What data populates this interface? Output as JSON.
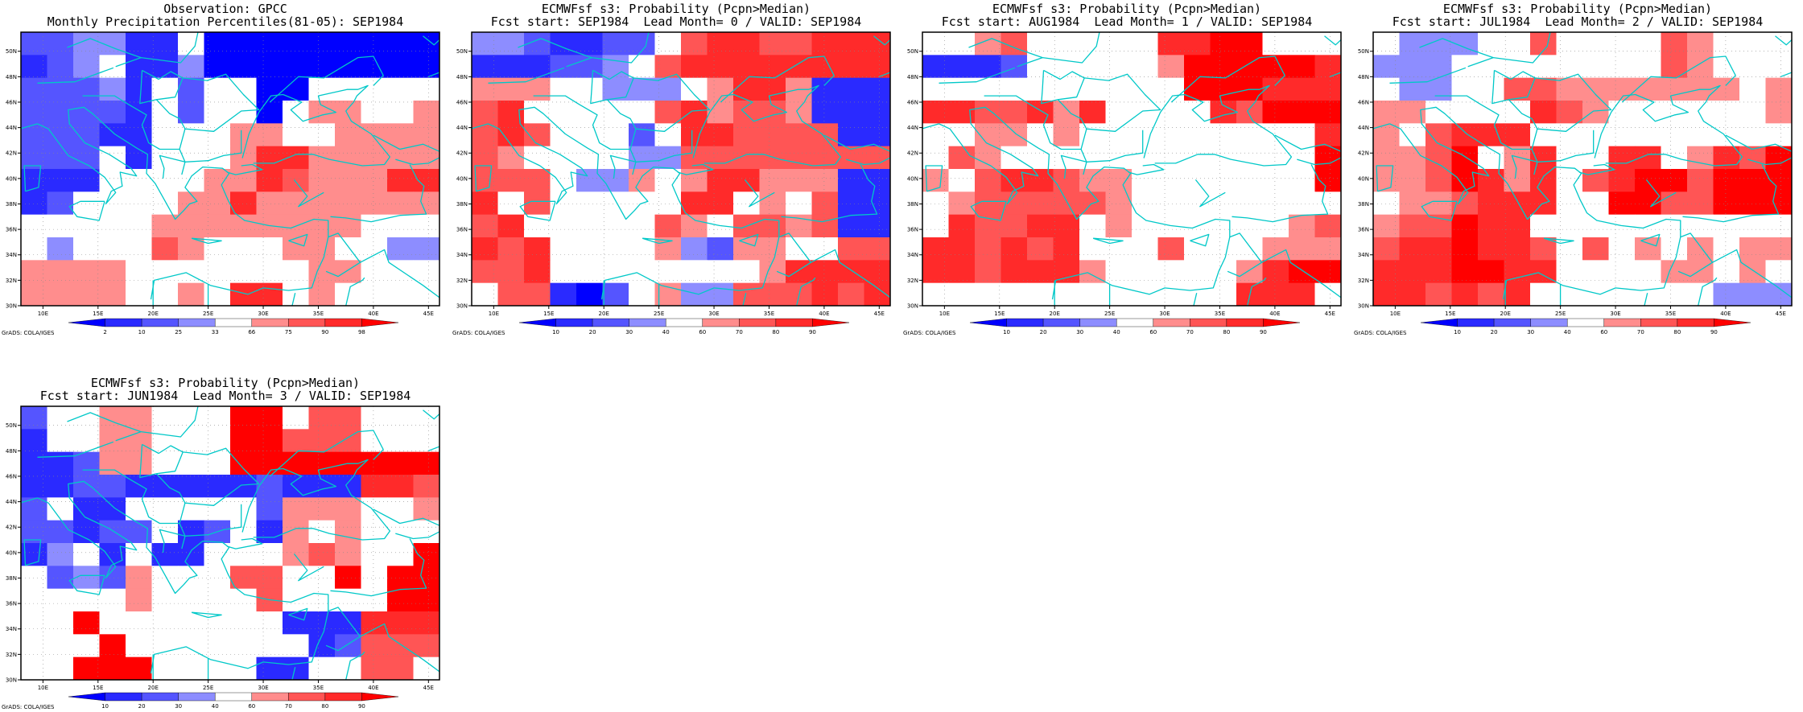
{
  "chart_data": [
    {
      "type": "heatmap",
      "title": [
        "Observation: GPCC",
        "Monthly Precipitation Percentiles(81-05): SEP1984"
      ],
      "legend": {
        "kind": "percentile",
        "labels": [
          "2",
          "10",
          "25",
          "33",
          "66",
          "75",
          "90",
          "98"
        ],
        "colors": [
          "#0000ff",
          "#2a2aff",
          "#5555ff",
          "#8d8dff",
          "#ffffff",
          "#ff8d8d",
          "#ff5555",
          "#ff2a2a",
          "#ff0000"
        ]
      },
      "grid": [
        [
          2,
          2,
          3,
          3,
          1,
          1,
          4,
          0,
          0,
          0,
          0,
          0,
          0,
          0,
          0,
          0
        ],
        [
          1,
          2,
          3,
          4,
          1,
          1,
          3,
          0,
          0,
          0,
          0,
          0,
          0,
          0,
          0,
          0
        ],
        [
          2,
          2,
          2,
          3,
          1,
          4,
          2,
          4,
          4,
          0,
          0,
          4,
          4,
          4,
          4,
          4
        ],
        [
          2,
          2,
          2,
          2,
          1,
          4,
          2,
          4,
          4,
          0,
          4,
          5,
          5,
          4,
          4,
          5
        ],
        [
          2,
          2,
          2,
          1,
          1,
          4,
          4,
          4,
          5,
          5,
          4,
          4,
          5,
          5,
          5,
          5
        ],
        [
          2,
          2,
          2,
          4,
          1,
          4,
          4,
          4,
          5,
          7,
          7,
          5,
          5,
          5,
          5,
          5
        ],
        [
          1,
          1,
          1,
          4,
          4,
          4,
          4,
          5,
          5,
          7,
          6,
          5,
          5,
          5,
          7,
          7
        ],
        [
          1,
          2,
          4,
          4,
          4,
          4,
          5,
          5,
          7,
          5,
          5,
          5,
          5,
          5,
          5,
          5
        ],
        [
          4,
          4,
          4,
          4,
          4,
          5,
          5,
          5,
          5,
          5,
          5,
          5,
          5,
          4,
          4,
          4
        ],
        [
          4,
          3,
          4,
          4,
          4,
          6,
          5,
          4,
          4,
          4,
          5,
          5,
          4,
          4,
          3,
          3
        ],
        [
          5,
          5,
          5,
          5,
          4,
          4,
          4,
          4,
          4,
          4,
          4,
          5,
          5,
          4,
          4,
          4
        ],
        [
          5,
          5,
          5,
          5,
          4,
          4,
          5,
          4,
          7,
          7,
          4,
          5,
          4,
          4,
          4,
          4
        ]
      ]
    },
    {
      "type": "heatmap",
      "title": [
        "ECMWFsf s3: Probability (Pcpn>Median)",
        "Fcst start: SEP1984  Lead Month= 0 / VALID: SEP1984"
      ],
      "legend": {
        "kind": "probability",
        "labels": [
          "10",
          "20",
          "30",
          "40",
          "60",
          "70",
          "80",
          "90"
        ],
        "colors": [
          "#0000ff",
          "#2a2aff",
          "#5555ff",
          "#8d8dff",
          "#ffffff",
          "#ff8d8d",
          "#ff5555",
          "#ff2a2a",
          "#ff0000"
        ]
      },
      "grid": [
        [
          3,
          3,
          2,
          1,
          1,
          2,
          2,
          4,
          6,
          7,
          7,
          6,
          6,
          7,
          7,
          7
        ],
        [
          1,
          1,
          1,
          2,
          2,
          3,
          4,
          6,
          7,
          7,
          7,
          7,
          7,
          7,
          7,
          7
        ],
        [
          5,
          5,
          5,
          4,
          4,
          3,
          3,
          3,
          4,
          5,
          7,
          7,
          5,
          1,
          1,
          1
        ],
        [
          6,
          7,
          4,
          4,
          4,
          4,
          4,
          6,
          7,
          5,
          6,
          6,
          5,
          1,
          1,
          1
        ],
        [
          6,
          7,
          6,
          4,
          4,
          4,
          2,
          4,
          7,
          7,
          6,
          6,
          6,
          6,
          1,
          1
        ],
        [
          6,
          5,
          4,
          4,
          4,
          4,
          3,
          3,
          6,
          6,
          6,
          6,
          6,
          6,
          6,
          6
        ],
        [
          6,
          6,
          6,
          4,
          3,
          3,
          5,
          4,
          5,
          7,
          7,
          5,
          5,
          5,
          1,
          1
        ],
        [
          7,
          4,
          6,
          4,
          4,
          4,
          4,
          4,
          7,
          7,
          4,
          5,
          4,
          6,
          1,
          1
        ],
        [
          6,
          7,
          4,
          4,
          4,
          4,
          4,
          6,
          5,
          4,
          6,
          6,
          5,
          6,
          1,
          1
        ],
        [
          7,
          6,
          7,
          4,
          4,
          4,
          4,
          5,
          3,
          2,
          5,
          5,
          4,
          4,
          6,
          6
        ],
        [
          6,
          6,
          7,
          4,
          4,
          4,
          4,
          4,
          4,
          4,
          4,
          5,
          7,
          7,
          7,
          7
        ],
        [
          4,
          6,
          6,
          1,
          0,
          2,
          4,
          5,
          3,
          3,
          6,
          6,
          6,
          7,
          6,
          7
        ]
      ]
    },
    {
      "type": "heatmap",
      "title": [
        "ECMWFsf s3: Probability (Pcpn>Median)",
        "Fcst start: AUG1984  Lead Month= 1 / VALID: SEP1984"
      ],
      "legend": {
        "kind": "probability",
        "labels": [
          "10",
          "20",
          "30",
          "40",
          "60",
          "70",
          "80",
          "90"
        ],
        "colors": [
          "#0000ff",
          "#2a2aff",
          "#5555ff",
          "#8d8dff",
          "#ffffff",
          "#ff8d8d",
          "#ff5555",
          "#ff2a2a",
          "#ff0000"
        ]
      },
      "grid": [
        [
          4,
          4,
          5,
          6,
          4,
          4,
          4,
          4,
          4,
          7,
          7,
          8,
          8,
          4,
          4,
          4
        ],
        [
          1,
          1,
          1,
          2,
          4,
          4,
          4,
          4,
          4,
          5,
          8,
          8,
          8,
          8,
          8,
          7
        ],
        [
          4,
          4,
          4,
          4,
          4,
          4,
          4,
          4,
          4,
          4,
          8,
          8,
          8,
          7,
          7,
          7
        ],
        [
          7,
          7,
          6,
          6,
          7,
          5,
          7,
          4,
          4,
          4,
          4,
          7,
          6,
          8,
          8,
          8
        ],
        [
          4,
          4,
          5,
          5,
          4,
          5,
          4,
          4,
          4,
          4,
          4,
          4,
          4,
          4,
          4,
          7
        ],
        [
          4,
          6,
          5,
          4,
          4,
          4,
          4,
          4,
          4,
          4,
          4,
          4,
          4,
          4,
          4,
          8
        ],
        [
          5,
          4,
          6,
          7,
          7,
          6,
          5,
          5,
          4,
          4,
          4,
          4,
          4,
          4,
          4,
          8
        ],
        [
          4,
          5,
          6,
          6,
          6,
          6,
          6,
          5,
          4,
          4,
          4,
          4,
          4,
          4,
          4,
          4
        ],
        [
          4,
          7,
          6,
          6,
          7,
          7,
          4,
          5,
          4,
          4,
          4,
          4,
          4,
          4,
          5,
          6
        ],
        [
          7,
          7,
          6,
          7,
          6,
          7,
          4,
          4,
          4,
          6,
          4,
          4,
          4,
          5,
          5,
          5
        ],
        [
          7,
          7,
          6,
          7,
          7,
          7,
          5,
          4,
          4,
          4,
          4,
          4,
          5,
          7,
          8,
          8
        ],
        [
          4,
          4,
          4,
          4,
          4,
          4,
          4,
          4,
          4,
          4,
          4,
          4,
          7,
          7,
          7,
          4
        ]
      ]
    },
    {
      "type": "heatmap",
      "title": [
        "ECMWFsf s3: Probability (Pcpn>Median)",
        "Fcst start: JUL1984  Lead Month= 2 / VALID: SEP1984"
      ],
      "legend": {
        "kind": "probability",
        "labels": [
          "10",
          "20",
          "30",
          "40",
          "60",
          "70",
          "80",
          "90"
        ],
        "colors": [
          "#0000ff",
          "#2a2aff",
          "#5555ff",
          "#8d8dff",
          "#ffffff",
          "#ff8d8d",
          "#ff5555",
          "#ff2a2a",
          "#ff0000"
        ]
      },
      "grid": [
        [
          4,
          3,
          3,
          3,
          4,
          4,
          6,
          4,
          4,
          4,
          4,
          6,
          5,
          4,
          4,
          4
        ],
        [
          3,
          3,
          3,
          4,
          4,
          4,
          4,
          4,
          4,
          4,
          4,
          6,
          5,
          4,
          4,
          4
        ],
        [
          4,
          3,
          3,
          4,
          4,
          6,
          6,
          5,
          5,
          5,
          5,
          5,
          5,
          5,
          4,
          5
        ],
        [
          5,
          5,
          4,
          4,
          4,
          4,
          7,
          6,
          5,
          4,
          4,
          4,
          4,
          4,
          4,
          5
        ],
        [
          5,
          4,
          6,
          7,
          7,
          7,
          4,
          4,
          4,
          4,
          4,
          4,
          4,
          4,
          4,
          4
        ],
        [
          5,
          5,
          6,
          8,
          4,
          5,
          7,
          4,
          4,
          7,
          7,
          4,
          5,
          7,
          6,
          8
        ],
        [
          5,
          5,
          6,
          8,
          7,
          5,
          7,
          4,
          6,
          7,
          8,
          8,
          6,
          8,
          8,
          8
        ],
        [
          4,
          5,
          5,
          6,
          7,
          7,
          7,
          4,
          4,
          8,
          8,
          6,
          6,
          8,
          8,
          8
        ],
        [
          5,
          6,
          6,
          8,
          7,
          7,
          4,
          4,
          4,
          4,
          4,
          4,
          4,
          4,
          4,
          4
        ],
        [
          6,
          7,
          7,
          8,
          7,
          7,
          6,
          4,
          6,
          4,
          5,
          4,
          5,
          4,
          5,
          5
        ],
        [
          7,
          7,
          7,
          8,
          8,
          7,
          7,
          4,
          4,
          4,
          4,
          5,
          5,
          4,
          5,
          4
        ],
        [
          7,
          7,
          6,
          7,
          6,
          7,
          4,
          4,
          4,
          4,
          4,
          4,
          4,
          3,
          3,
          3
        ]
      ]
    },
    {
      "type": "heatmap",
      "title": [
        "ECMWFsf s3: Probability (Pcpn>Median)",
        "Fcst start: JUN1984  Lead Month= 3 / VALID: SEP1984"
      ],
      "legend": {
        "kind": "probability",
        "labels": [
          "10",
          "20",
          "30",
          "40",
          "60",
          "70",
          "80",
          "90"
        ],
        "colors": [
          "#0000ff",
          "#2a2aff",
          "#5555ff",
          "#8d8dff",
          "#ffffff",
          "#ff8d8d",
          "#ff5555",
          "#ff2a2a",
          "#ff0000"
        ]
      },
      "grid": [
        [
          2,
          4,
          4,
          5,
          5,
          4,
          4,
          4,
          8,
          8,
          4,
          6,
          6,
          4,
          4,
          4
        ],
        [
          1,
          4,
          4,
          5,
          5,
          4,
          4,
          4,
          8,
          8,
          6,
          6,
          6,
          4,
          4,
          4
        ],
        [
          1,
          1,
          2,
          5,
          5,
          4,
          4,
          4,
          8,
          8,
          8,
          8,
          8,
          8,
          8,
          8
        ],
        [
          1,
          1,
          2,
          2,
          1,
          1,
          1,
          1,
          1,
          2,
          1,
          1,
          1,
          7,
          7,
          6
        ],
        [
          2,
          4,
          1,
          1,
          4,
          4,
          4,
          4,
          4,
          2,
          5,
          5,
          5,
          4,
          4,
          5
        ],
        [
          2,
          2,
          1,
          2,
          2,
          4,
          1,
          2,
          4,
          1,
          5,
          4,
          5,
          4,
          4,
          4
        ],
        [
          1,
          3,
          4,
          1,
          4,
          1,
          1,
          4,
          4,
          4,
          5,
          6,
          5,
          4,
          4,
          8
        ],
        [
          4,
          2,
          3,
          2,
          5,
          4,
          4,
          4,
          6,
          6,
          4,
          4,
          8,
          4,
          8,
          8
        ],
        [
          4,
          4,
          4,
          4,
          5,
          4,
          4,
          4,
          4,
          6,
          4,
          4,
          4,
          4,
          8,
          8
        ],
        [
          4,
          4,
          8,
          4,
          4,
          4,
          4,
          4,
          4,
          4,
          1,
          1,
          1,
          7,
          7,
          7
        ],
        [
          4,
          4,
          4,
          8,
          4,
          4,
          4,
          4,
          4,
          4,
          4,
          1,
          2,
          6,
          6,
          6
        ],
        [
          4,
          4,
          8,
          8,
          8,
          4,
          4,
          4,
          4,
          1,
          1,
          4,
          4,
          6,
          6,
          4
        ]
      ]
    }
  ],
  "axes": {
    "x_ticks": [
      "10E",
      "15E",
      "20E",
      "25E",
      "30E",
      "35E",
      "40E",
      "45E"
    ],
    "y_ticks": [
      "30N",
      "32N",
      "34N",
      "36N",
      "38N",
      "40N",
      "42N",
      "44N",
      "46N",
      "48N",
      "50N"
    ]
  },
  "credit": "GrADS: COLA/IGES",
  "colors": {
    "coast": "#00c8c8",
    "frame": "#000000"
  }
}
